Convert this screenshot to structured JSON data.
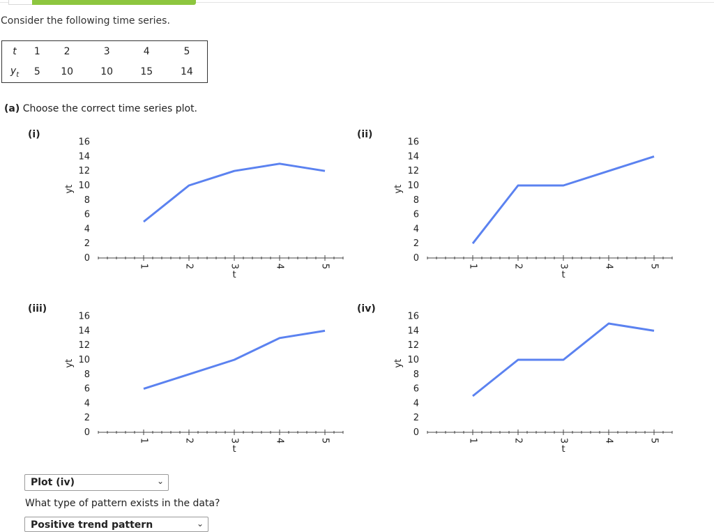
{
  "header": {
    "intro": "Consider the following time series."
  },
  "table": {
    "row_labels": {
      "t": "t",
      "y": "y",
      "y_sub": "t"
    },
    "t": [
      "1",
      "2",
      "3",
      "4",
      "5"
    ],
    "y": [
      "5",
      "10",
      "10",
      "15",
      "14"
    ]
  },
  "part_a": {
    "label": "(a)",
    "prompt": "Choose the correct time series plot.",
    "selected": "Plot (iv)"
  },
  "part_b": {
    "question": "What type of pattern exists in the data?",
    "selected": "Positive trend pattern"
  },
  "plot_labels": [
    "(i)",
    "(ii)",
    "(iii)",
    "(iv)"
  ],
  "chart_data": [
    {
      "name": "(i)",
      "type": "line",
      "x": [
        1,
        2,
        3,
        4,
        5
      ],
      "y": [
        5,
        10,
        12,
        13,
        12
      ],
      "xlabel": "t",
      "ylabel": "yt",
      "xlim": [
        0,
        5.4
      ],
      "ylim": [
        0,
        16
      ],
      "xticks": [
        "1",
        "2",
        "3",
        "4",
        "5"
      ],
      "yticks": [
        "0",
        "2",
        "4",
        "6",
        "8",
        "10",
        "12",
        "14",
        "16"
      ]
    },
    {
      "name": "(ii)",
      "type": "line",
      "x": [
        1,
        2,
        3,
        4,
        5
      ],
      "y": [
        2,
        10,
        10,
        12,
        14
      ],
      "xlabel": "t",
      "ylabel": "yt",
      "xlim": [
        0,
        5.4
      ],
      "ylim": [
        0,
        16
      ],
      "xticks": [
        "1",
        "2",
        "3",
        "4",
        "5"
      ],
      "yticks": [
        "0",
        "2",
        "4",
        "6",
        "8",
        "10",
        "12",
        "14",
        "16"
      ]
    },
    {
      "name": "(iii)",
      "type": "line",
      "x": [
        1,
        2,
        3,
        4,
        5
      ],
      "y": [
        6,
        8,
        10,
        13,
        14
      ],
      "xlabel": "t",
      "ylabel": "yt",
      "xlim": [
        0,
        5.4
      ],
      "ylim": [
        0,
        16
      ],
      "xticks": [
        "1",
        "2",
        "3",
        "4",
        "5"
      ],
      "yticks": [
        "0",
        "2",
        "4",
        "6",
        "8",
        "10",
        "12",
        "14",
        "16"
      ]
    },
    {
      "name": "(iv)",
      "type": "line",
      "x": [
        1,
        2,
        3,
        4,
        5
      ],
      "y": [
        5,
        10,
        10,
        15,
        14
      ],
      "xlabel": "t",
      "ylabel": "yt",
      "xlim": [
        0,
        5.4
      ],
      "ylim": [
        0,
        16
      ],
      "xticks": [
        "1",
        "2",
        "3",
        "4",
        "5"
      ],
      "yticks": [
        "0",
        "2",
        "4",
        "6",
        "8",
        "10",
        "12",
        "14",
        "16"
      ]
    }
  ]
}
